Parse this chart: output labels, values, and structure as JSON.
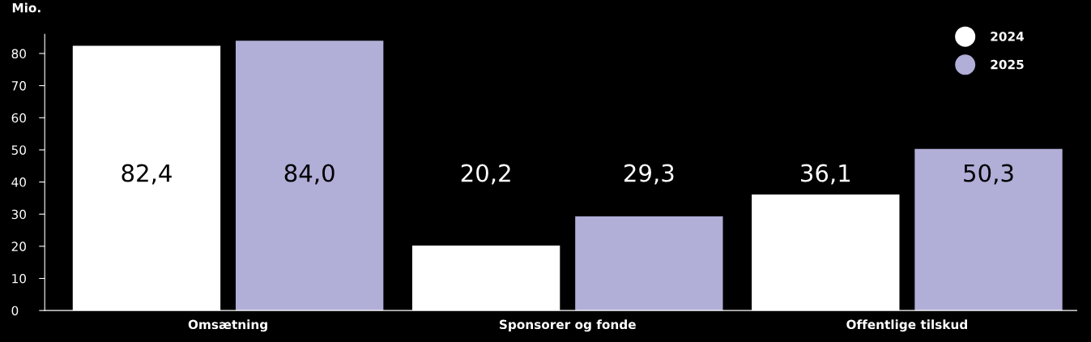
{
  "chart_data": {
    "type": "bar",
    "ylabel": "Mio.",
    "categories": [
      "Omsætning",
      "Sponsorer og fonde",
      "Offentlige tilskud"
    ],
    "series": [
      {
        "name": "2024",
        "color": "#ffffff",
        "values": [
          82.4,
          20.2,
          36.1
        ],
        "value_labels": [
          "82,4",
          "20,2",
          "36,1"
        ]
      },
      {
        "name": "2025",
        "color": "#b1aed8",
        "values": [
          84.0,
          29.3,
          50.3
        ],
        "value_labels": [
          "84,0",
          "29,3",
          "50,3"
        ]
      }
    ],
    "ylim": [
      0,
      86
    ],
    "yticks": [
      0,
      10,
      20,
      30,
      40,
      50,
      60,
      70,
      80
    ],
    "grid": false,
    "legend": "top right"
  }
}
